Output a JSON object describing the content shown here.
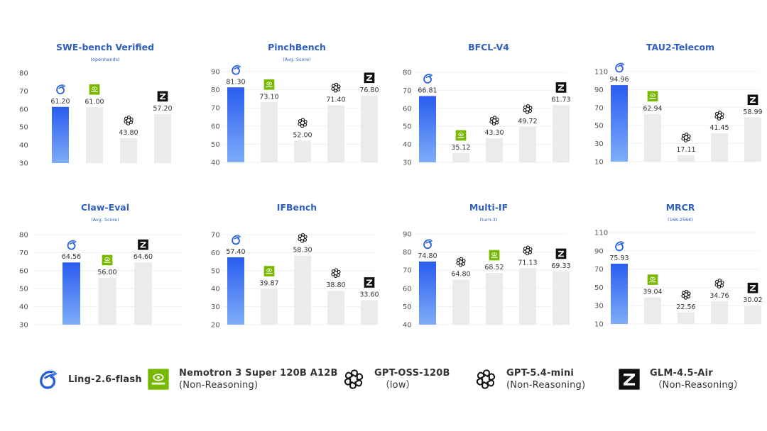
{
  "models": {
    "ling": {
      "name": "Ling-2.6-flash",
      "sub": "",
      "icon": "ling-logo-icon",
      "color": "#2b5ff0"
    },
    "nemotron": {
      "name": "Nemotron 3 Super 120B A12B",
      "sub": "(Non-Reasoning)",
      "icon": "nvidia-logo-icon",
      "color": "#76b900"
    },
    "gptoss": {
      "name": "GPT-OSS-120B",
      "sub": "（low）",
      "icon": "openai-logo-icon",
      "color": "#111111"
    },
    "gptmini": {
      "name": "GPT-5.4-mini",
      "sub": "(Non-Reasoning)",
      "icon": "openai-logo-icon",
      "color": "#111111"
    },
    "glm": {
      "name": "GLM-4.5-Air",
      "sub": "（Non-Reasoning）",
      "icon": "zhipu-z-logo-icon",
      "color": "#111111"
    }
  },
  "legend": {
    "items": [
      {
        "model": "ling",
        "label": "Ling-2.6-flash",
        "sub": ""
      },
      {
        "model": "nemotron",
        "label": "Nemotron 3 Super 120B A12B",
        "sub": "(Non-Reasoning)"
      },
      {
        "model": "gptoss",
        "label": "GPT-OSS-120B",
        "sub": "  （low）"
      },
      {
        "model": "gptmini",
        "label": "GPT-5.4-mini",
        "sub": "(Non-Reasoning)"
      },
      {
        "model": "glm",
        "label": "GLM-4.5-Air",
        "sub": " （Non-Reasoning）"
      }
    ]
  },
  "colors": {
    "title": "#2f5fbf",
    "highlight_top": "#2a5cf0",
    "highlight_bottom": "#7eadf8",
    "other_bar": "#ebebeb",
    "gridline": "#f1f1f1",
    "tick_text": "#555555",
    "value_text": "#333333"
  },
  "chart_data": [
    {
      "type": "bar",
      "title": "SWE-bench Verified",
      "subtitle": "(openhands)",
      "ylim": [
        30,
        80
      ],
      "yticks": [
        30,
        40,
        50,
        60,
        70,
        80
      ],
      "grid": false,
      "bars": [
        {
          "model": "ling",
          "value": 61.2,
          "label": "61.20"
        },
        {
          "model": "nemotron",
          "value": 61.0,
          "label": "61.00"
        },
        {
          "model": "gptoss",
          "value": 43.8,
          "label": "43.80"
        },
        {
          "model": "glm",
          "value": 57.2,
          "label": "57.20"
        }
      ]
    },
    {
      "type": "bar",
      "title": "PinchBench",
      "subtitle": "(Avg. Score)",
      "ylim": [
        40,
        90
      ],
      "yticks": [
        40,
        50,
        60,
        70,
        80,
        90
      ],
      "grid": true,
      "bars": [
        {
          "model": "ling",
          "value": 81.3,
          "label": "81.30"
        },
        {
          "model": "nemotron",
          "value": 73.1,
          "label": "73.10"
        },
        {
          "model": "gptoss",
          "value": 52.0,
          "label": "52.00"
        },
        {
          "model": "gptmini",
          "value": 71.4,
          "label": "71.40"
        },
        {
          "model": "glm",
          "value": 76.8,
          "label": "76.80"
        }
      ]
    },
    {
      "type": "bar",
      "title": "BFCL-V4",
      "subtitle": "",
      "ylim": [
        30,
        80
      ],
      "yticks": [
        30,
        40,
        50,
        60,
        70,
        80
      ],
      "grid": true,
      "bars": [
        {
          "model": "ling",
          "value": 66.81,
          "label": "66.81"
        },
        {
          "model": "nemotron",
          "value": 35.12,
          "label": "35.12"
        },
        {
          "model": "gptoss",
          "value": 43.3,
          "label": "43.30"
        },
        {
          "model": "gptmini",
          "value": 49.72,
          "label": "49.72"
        },
        {
          "model": "glm",
          "value": 61.73,
          "label": "61.73"
        }
      ]
    },
    {
      "type": "bar",
      "title": "TAU2-Telecom",
      "subtitle": "",
      "ylim": [
        10,
        110
      ],
      "yticks": [
        10,
        30,
        50,
        70,
        90,
        110
      ],
      "grid": true,
      "bars": [
        {
          "model": "ling",
          "value": 94.96,
          "label": "94.96"
        },
        {
          "model": "nemotron",
          "value": 62.94,
          "label": "62.94"
        },
        {
          "model": "gptoss",
          "value": 17.11,
          "label": "17.11"
        },
        {
          "model": "gptmini",
          "value": 41.45,
          "label": "41.45"
        },
        {
          "model": "glm",
          "value": 58.99,
          "label": "58.99"
        }
      ]
    },
    {
      "type": "bar",
      "title": "Claw-Eval",
      "subtitle": "(Avg. Score)",
      "ylim": [
        30,
        80
      ],
      "yticks": [
        30,
        40,
        50,
        60,
        70,
        80
      ],
      "grid": true,
      "bars": [
        {
          "model": "ling",
          "value": 64.56,
          "label": "64.56"
        },
        {
          "model": "nemotron",
          "value": 56.0,
          "label": "56.00"
        },
        {
          "model": "glm",
          "value": 64.6,
          "label": "64.60"
        }
      ]
    },
    {
      "type": "bar",
      "title": "IFBench",
      "subtitle": "",
      "ylim": [
        20,
        70
      ],
      "yticks": [
        20,
        30,
        40,
        50,
        60,
        70
      ],
      "grid": true,
      "bars": [
        {
          "model": "ling",
          "value": 57.4,
          "label": "57.40"
        },
        {
          "model": "nemotron",
          "value": 39.87,
          "label": "39.87"
        },
        {
          "model": "gptoss",
          "value": 58.3,
          "label": "58.30"
        },
        {
          "model": "gptmini",
          "value": 38.8,
          "label": "38.80"
        },
        {
          "model": "glm",
          "value": 33.6,
          "label": "33.60"
        }
      ]
    },
    {
      "type": "bar",
      "title": "Multi-IF",
      "subtitle": "(turn-3)",
      "ylim": [
        40,
        90
      ],
      "yticks": [
        40,
        50,
        60,
        70,
        80,
        90
      ],
      "grid": true,
      "bars": [
        {
          "model": "ling",
          "value": 74.8,
          "label": "74.80"
        },
        {
          "model": "gptoss",
          "value": 64.8,
          "label": "64.80"
        },
        {
          "model": "nemotron",
          "value": 68.52,
          "label": "68.52"
        },
        {
          "model": "gptmini",
          "value": 71.13,
          "label": "71.13"
        },
        {
          "model": "glm",
          "value": 69.33,
          "label": "69.33"
        }
      ]
    },
    {
      "type": "bar",
      "title": "MRCR",
      "subtitle": "(16K-256K)",
      "ylim": [
        10,
        110
      ],
      "yticks": [
        10,
        30,
        50,
        70,
        90,
        110
      ],
      "grid": true,
      "bars": [
        {
          "model": "ling",
          "value": 75.93,
          "label": "75.93"
        },
        {
          "model": "nemotron",
          "value": 39.04,
          "label": "39.04"
        },
        {
          "model": "gptoss",
          "value": 22.56,
          "label": "22.56"
        },
        {
          "model": "gptmini",
          "value": 34.76,
          "label": "34.76"
        },
        {
          "model": "glm",
          "value": 30.02,
          "label": "30.02"
        }
      ]
    }
  ]
}
